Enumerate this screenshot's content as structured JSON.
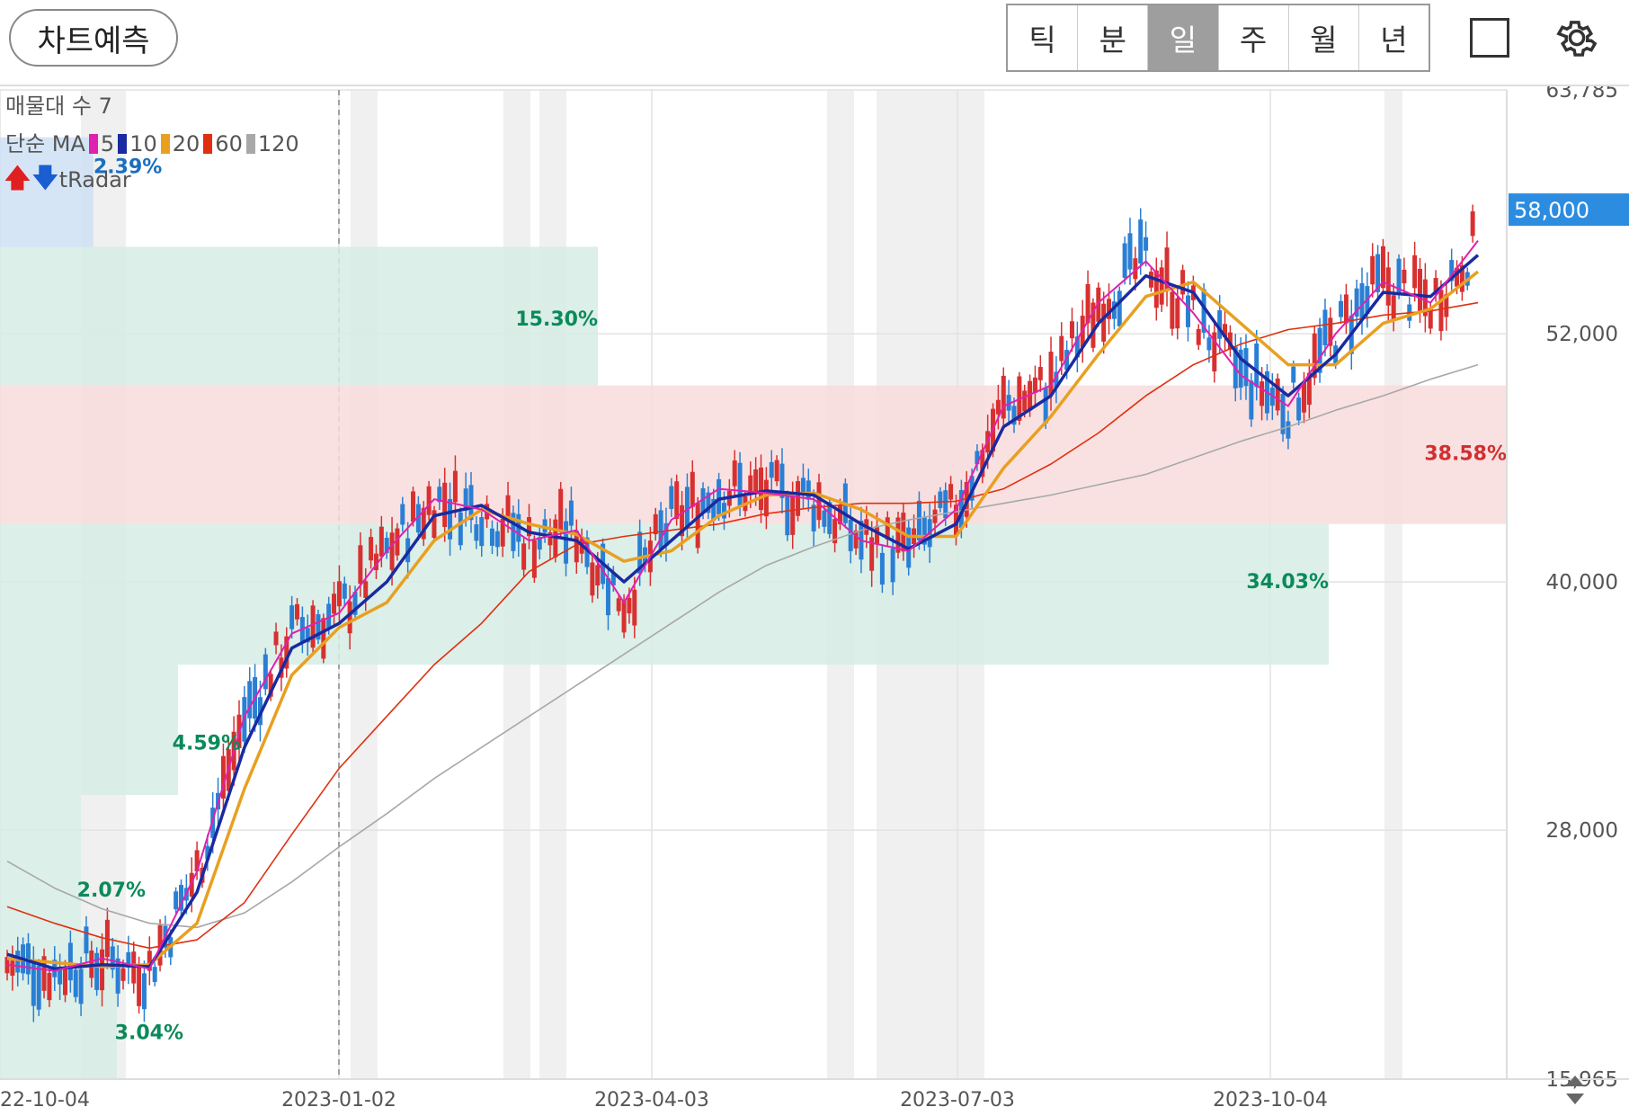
{
  "toolbar": {
    "predict_label": "차트예측",
    "periods": [
      {
        "label": "틱",
        "active": false
      },
      {
        "label": "분",
        "active": false
      },
      {
        "label": "일",
        "active": true
      },
      {
        "label": "주",
        "active": false
      },
      {
        "label": "월",
        "active": false
      },
      {
        "label": "년",
        "active": false
      }
    ]
  },
  "legend": {
    "volume_profile": "매물대 수 7",
    "ma_title": "단순 MA",
    "ma_items": [
      {
        "period": "5",
        "color": "#e020b0"
      },
      {
        "period": "10",
        "color": "#1a2aa0"
      },
      {
        "period": "20",
        "color": "#e8a020"
      },
      {
        "period": "60",
        "color": "#e03010"
      },
      {
        "period": "120",
        "color": "#a8a8a8"
      }
    ],
    "radar_label": "tRadar"
  },
  "price_axis": {
    "labels": [
      "63,785",
      "52,000",
      "40,000",
      "28,000",
      "15,965"
    ],
    "current_price": "58,000",
    "current_price_color": "#2b8ce0"
  },
  "date_axis": {
    "labels": [
      "22-10-04",
      "2023-01-02",
      "2023-04-03",
      "2023-07-03",
      "2023-10-04"
    ]
  },
  "zones": [
    {
      "label": "2.39%",
      "color": "#1a6ec0",
      "fill": "#cfe0f4"
    },
    {
      "label": "15.30%",
      "color": "#0a8a5a",
      "fill": "#d6ece4"
    },
    {
      "label": "38.58%",
      "color": "#d03030",
      "fill": "#f8dcdc"
    },
    {
      "label": "34.03%",
      "color": "#0a8a5a",
      "fill": "#d6ece4"
    },
    {
      "label": "4.59%",
      "color": "#0a8a5a",
      "fill": "#d6ece4"
    },
    {
      "label": "2.07%",
      "color": "#0a8a5a",
      "fill": "#d6ece4"
    },
    {
      "label": "3.04%",
      "color": "#0a8a5a",
      "fill": "#d6ece4"
    }
  ],
  "chart_data": {
    "type": "line",
    "ylim": [
      15965,
      63785
    ],
    "x": [
      "2022-10-04",
      "2022-10-18",
      "2022-11-01",
      "2022-11-15",
      "2022-11-29",
      "2022-12-13",
      "2022-12-27",
      "2023-01-10",
      "2023-01-24",
      "2023-02-07",
      "2023-02-21",
      "2023-03-07",
      "2023-03-21",
      "2023-04-04",
      "2023-04-18",
      "2023-05-02",
      "2023-05-16",
      "2023-05-30",
      "2023-06-13",
      "2023-06-27",
      "2023-07-11",
      "2023-07-25",
      "2023-08-08",
      "2023-08-22",
      "2023-09-05",
      "2023-09-19",
      "2023-10-04",
      "2023-10-18",
      "2023-11-01",
      "2023-11-15",
      "2023-11-29",
      "2023-12-13"
    ],
    "series": [
      {
        "name": "5",
        "values": [
          21500,
          21200,
          21800,
          21300,
          26000,
          33500,
          37500,
          38500,
          41500,
          44000,
          43500,
          42000,
          42500,
          39000,
          43000,
          44500,
          44300,
          44000,
          42000,
          41500,
          43500,
          48500,
          49500,
          53500,
          55500,
          53000,
          50000,
          48500,
          52000,
          54500,
          53500,
          56500
        ]
      },
      {
        "name": "10",
        "values": [
          22000,
          21300,
          21500,
          21400,
          25000,
          32000,
          36800,
          38000,
          40000,
          43200,
          43700,
          42400,
          42000,
          40000,
          42000,
          44000,
          44400,
          44200,
          42800,
          41600,
          42800,
          47500,
          49000,
          52500,
          54800,
          54000,
          50800,
          49000,
          51000,
          54000,
          53800,
          55800
        ]
      },
      {
        "name": "20",
        "values": [
          21800,
          21600,
          21400,
          21500,
          23500,
          30000,
          35500,
          37800,
          39000,
          42000,
          43500,
          42800,
          42300,
          41000,
          41500,
          43200,
          44200,
          44300,
          43500,
          42200,
          42200,
          45500,
          48000,
          51000,
          53800,
          54500,
          52500,
          50500,
          50500,
          52500,
          53200,
          55000
        ]
      },
      {
        "name": "60",
        "values": [
          24300,
          23500,
          22800,
          22300,
          22700,
          24500,
          27800,
          31000,
          33500,
          36000,
          38000,
          40500,
          41800,
          42200,
          42500,
          42800,
          43300,
          43600,
          43800,
          43800,
          43900,
          44500,
          45700,
          47200,
          49000,
          50500,
          51500,
          52200,
          52500,
          52900,
          53100,
          53500
        ]
      },
      {
        "name": "120",
        "values": [
          26500,
          25200,
          24200,
          23500,
          23300,
          24000,
          25500,
          27200,
          28800,
          30500,
          32000,
          33500,
          35000,
          36500,
          38000,
          39500,
          40800,
          41700,
          42500,
          43000,
          43400,
          43800,
          44200,
          44700,
          45200,
          46000,
          46800,
          47500,
          48300,
          49000,
          49800,
          50500
        ]
      }
    ]
  }
}
